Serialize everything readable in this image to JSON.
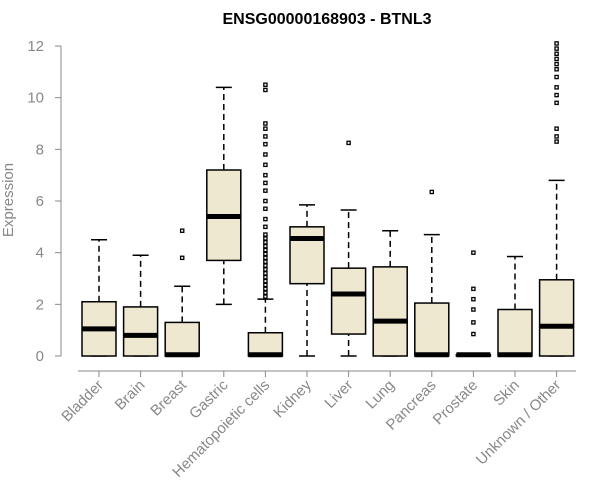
{
  "chart_data": {
    "type": "boxplot",
    "title": "ENSG00000168903 - BTNL3",
    "xlabel": "",
    "ylabel": "Expression",
    "ylim": [
      0,
      12
    ],
    "yticks": [
      0,
      2,
      4,
      6,
      8,
      10,
      12
    ],
    "grid": false,
    "box_color": "#EFE8D0",
    "outline_color": "#000000",
    "axis_text_color": "#888888",
    "categories": [
      "Bladder",
      "Brain",
      "Breast",
      "Gastric",
      "Hematopoietic cells",
      "Kidney",
      "Liver",
      "Lung",
      "Pancreas",
      "Prostate",
      "Skin",
      "Unknown / Other"
    ],
    "boxes": [
      {
        "category": "Bladder",
        "min": 0,
        "q1": 0,
        "median": 1.05,
        "q3": 2.1,
        "max": 4.5,
        "outliers": []
      },
      {
        "category": "Brain",
        "min": 0,
        "q1": 0,
        "median": 0.8,
        "q3": 1.9,
        "max": 3.9,
        "outliers": []
      },
      {
        "category": "Breast",
        "min": 0,
        "q1": 0,
        "median": 0.05,
        "q3": 1.3,
        "max": 2.7,
        "outliers": [
          3.8,
          4.85
        ]
      },
      {
        "category": "Gastric",
        "min": 2.0,
        "q1": 3.7,
        "median": 5.4,
        "q3": 7.2,
        "max": 10.4,
        "outliers": []
      },
      {
        "category": "Hematopoietic cells",
        "min": 0,
        "q1": 0,
        "median": 0.05,
        "q3": 0.9,
        "max": 2.2,
        "outliers": [
          2.3,
          2.45,
          2.6,
          2.75,
          2.9,
          3.05,
          3.2,
          3.35,
          3.5,
          3.65,
          3.8,
          3.95,
          4.1,
          4.25,
          4.4,
          4.55,
          4.7,
          5.0,
          5.3,
          5.7,
          6.0,
          6.4,
          6.7,
          7.0,
          7.4,
          7.8,
          8.2,
          8.5,
          8.8,
          9.0,
          10.3,
          10.5
        ]
      },
      {
        "category": "Kidney",
        "min": 0,
        "q1": 2.8,
        "median": 4.55,
        "q3": 5.0,
        "max": 5.85,
        "outliers": []
      },
      {
        "category": "Liver",
        "min": 0,
        "q1": 0.85,
        "median": 2.4,
        "q3": 3.4,
        "max": 5.65,
        "outliers": [
          8.25
        ]
      },
      {
        "category": "Lung",
        "min": 0,
        "q1": 0,
        "median": 1.35,
        "q3": 3.45,
        "max": 4.85,
        "outliers": []
      },
      {
        "category": "Pancreas",
        "min": 0,
        "q1": 0,
        "median": 0.05,
        "q3": 2.05,
        "max": 4.7,
        "outliers": [
          6.35
        ]
      },
      {
        "category": "Prostate",
        "min": 0,
        "q1": 0,
        "median": 0.05,
        "q3": 0.05,
        "max": 0.05,
        "outliers": [
          0.85,
          1.3,
          1.8,
          2.2,
          2.6,
          4.0
        ]
      },
      {
        "category": "Skin",
        "min": 0,
        "q1": 0,
        "median": 0.05,
        "q3": 1.8,
        "max": 3.85,
        "outliers": []
      },
      {
        "category": "Unknown / Other",
        "min": 0,
        "q1": 0,
        "median": 1.15,
        "q3": 2.95,
        "max": 6.8,
        "outliers": [
          8.3,
          8.5,
          8.8,
          9.8,
          10.1,
          10.4,
          10.8,
          11.1,
          11.3,
          11.5,
          11.7,
          11.9,
          12.1
        ]
      }
    ]
  }
}
